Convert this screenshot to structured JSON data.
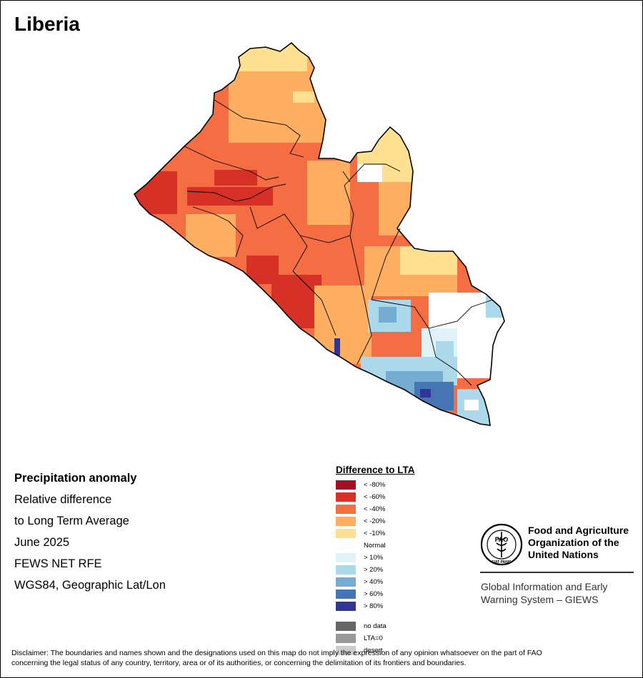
{
  "title": "Liberia",
  "info": {
    "line1": "Precipitation anomaly",
    "line2": "Relative difference",
    "line3": "to Long Term Average",
    "line4": "June 2025",
    "line5": "FEWS NET RFE",
    "line6": "WGS84, Geographic Lat/Lon"
  },
  "legend": {
    "title": "Difference to LTA",
    "classes": [
      {
        "label": "< -80%",
        "color": "#a50f26"
      },
      {
        "label": "< -60%",
        "color": "#d73027"
      },
      {
        "label": "< -40%",
        "color": "#f46d43"
      },
      {
        "label": "< -20%",
        "color": "#fdae61"
      },
      {
        "label": "< -10%",
        "color": "#fee090"
      }
    ],
    "normal": "Normal",
    "wet_classes": [
      {
        "label": "> 10%",
        "color": "#e0f3f8"
      },
      {
        "label": "> 20%",
        "color": "#abd9e9"
      },
      {
        "label": "> 40%",
        "color": "#74add1"
      },
      {
        "label": "> 60%",
        "color": "#4575b4"
      },
      {
        "label": "> 80%",
        "color": "#313695"
      }
    ],
    "other": [
      {
        "label": "no data",
        "color": "#666666"
      },
      {
        "label": "LTA=0",
        "color": "#999999"
      },
      {
        "label": "desert",
        "color": "#cccccc"
      }
    ]
  },
  "org": {
    "name_line1": "Food and Agriculture",
    "name_line2": "Organization of the",
    "name_line3": "United Nations",
    "logo_text": "FAO",
    "logo_motto": "FIAT PANIS",
    "system_line1": "Global Information and Early",
    "system_line2": "Warning System – GIEWS"
  },
  "disclaimer": {
    "line1": "Disclaimer: The boundaries and names shown and the designations used on this map do not imply the expression of any opinion whatsoever on the part of FAO",
    "line2": "concerning the legal status of any country, territory, area or of its authorities, or concerning the delimitation of its frontiers and boundaries."
  },
  "map": {
    "dominant_anomaly": "< -40%",
    "regions": [
      {
        "name": "north-west",
        "anomaly": "< -40%"
      },
      {
        "name": "north",
        "anomaly": "< -20%"
      },
      {
        "name": "coast-west",
        "anomaly": "< -60%"
      },
      {
        "name": "center",
        "anomaly": "< -40%"
      },
      {
        "name": "north-east",
        "anomaly": "< -10%"
      },
      {
        "name": "south-east",
        "anomaly": "> 20%"
      },
      {
        "name": "far-south-east",
        "anomaly": "> 60%"
      }
    ]
  }
}
